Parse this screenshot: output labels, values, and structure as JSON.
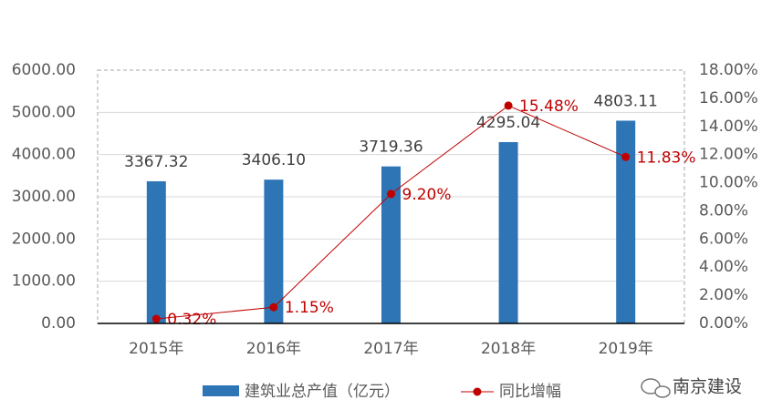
{
  "chart_data": {
    "type": "bar",
    "categories": [
      "2015年",
      "2016年",
      "2017年",
      "2018年",
      "2019年"
    ],
    "series": [
      {
        "name": "建筑业总产值（亿元）",
        "type": "bar",
        "color": "#2e75b6",
        "values": [
          3367.32,
          3406.1,
          3719.36,
          4295.04,
          4803.11
        ],
        "value_labels": [
          "3367.32",
          "3406.10",
          "3719.36",
          "4295.04",
          "4803.11"
        ]
      },
      {
        "name": "同比增幅",
        "type": "line",
        "axis": "y2",
        "color": "#c00000",
        "values": [
          0.32,
          1.15,
          9.2,
          15.48,
          11.83
        ],
        "value_labels": [
          "0.32%",
          "1.15%",
          "9.20%",
          "15.48%",
          "11.83%"
        ]
      }
    ],
    "ylim": [
      0,
      6000
    ],
    "yticks": [
      {
        "value": 0,
        "label": "0.00"
      },
      {
        "value": 1000,
        "label": "1000.00"
      },
      {
        "value": 2000,
        "label": "2000.00"
      },
      {
        "value": 3000,
        "label": "3000.00"
      },
      {
        "value": 4000,
        "label": "4000.00"
      },
      {
        "value": 5000,
        "label": "5000.00"
      },
      {
        "value": 6000,
        "label": "6000.00"
      }
    ],
    "y2lim": [
      0,
      18
    ],
    "y2ticks": [
      {
        "value": 0,
        "label": "0.00%"
      },
      {
        "value": 2,
        "label": "2.00%"
      },
      {
        "value": 4,
        "label": "4.00%"
      },
      {
        "value": 6,
        "label": "6.00%"
      },
      {
        "value": 8,
        "label": "8.00%"
      },
      {
        "value": 10,
        "label": "10.00%"
      },
      {
        "value": 12,
        "label": "12.00%"
      },
      {
        "value": 14,
        "label": "14.00%"
      },
      {
        "value": 16,
        "label": "16.00%"
      },
      {
        "value": 18,
        "label": "18.00%"
      }
    ],
    "grid": true,
    "legend": "bottom",
    "watermark": "南京建设"
  }
}
